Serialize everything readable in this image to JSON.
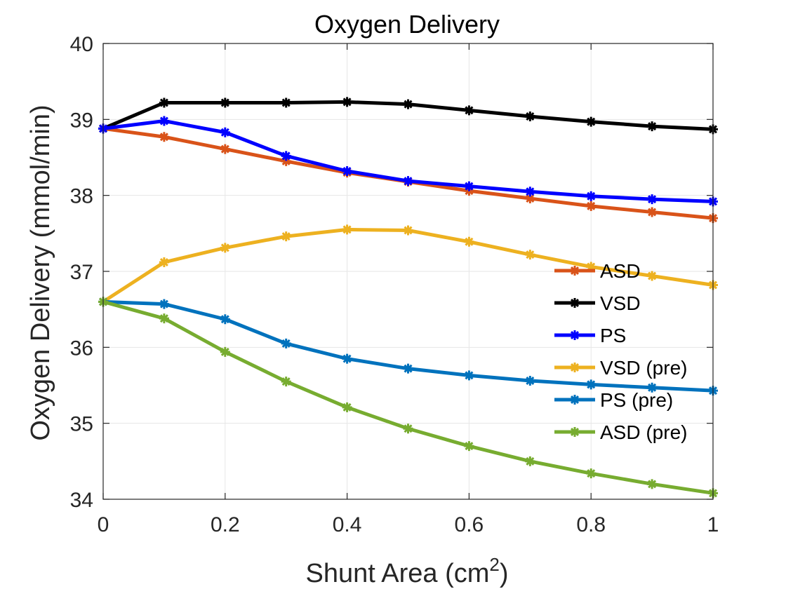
{
  "chart_data": {
    "type": "line",
    "title": "Oxygen Delivery",
    "xlabel": "Shunt Area (cm",
    "xlabel_sup": "2",
    "xlabel_close": ")",
    "ylabel": "Oxygen Delivery (mmol/min)",
    "xlim": [
      0,
      1
    ],
    "ylim": [
      34,
      40
    ],
    "xticks": [
      "0",
      "0.2",
      "0.4",
      "0.6",
      "0.8",
      "1"
    ],
    "yticks": [
      "34",
      "35",
      "36",
      "37",
      "38",
      "39",
      "40"
    ],
    "grid": true,
    "legend_position": "right",
    "x": [
      0,
      0.1,
      0.2,
      0.3,
      0.4,
      0.5,
      0.6,
      0.7,
      0.8,
      0.9,
      1.0
    ],
    "series": [
      {
        "name": "ASD",
        "color": "#D95319",
        "values": [
          38.88,
          38.77,
          38.61,
          38.45,
          38.3,
          38.18,
          38.06,
          37.96,
          37.86,
          37.78,
          37.7
        ]
      },
      {
        "name": "VSD",
        "color": "#000000",
        "values": [
          38.88,
          39.22,
          39.22,
          39.22,
          39.23,
          39.2,
          39.12,
          39.04,
          38.97,
          38.91,
          38.87
        ]
      },
      {
        "name": "PS",
        "color": "#0000FF",
        "values": [
          38.88,
          38.98,
          38.83,
          38.52,
          38.32,
          38.19,
          38.12,
          38.05,
          37.99,
          37.95,
          37.92
        ]
      },
      {
        "name": "VSD (pre)",
        "color": "#EDB120",
        "values": [
          36.6,
          37.12,
          37.31,
          37.46,
          37.55,
          37.54,
          37.39,
          37.22,
          37.06,
          36.94,
          36.82
        ]
      },
      {
        "name": "PS (pre)",
        "color": "#0072BD",
        "values": [
          36.6,
          36.57,
          36.37,
          36.05,
          35.85,
          35.72,
          35.63,
          35.56,
          35.51,
          35.47,
          35.43
        ]
      },
      {
        "name": "ASD (pre)",
        "color": "#77AC30",
        "values": [
          36.6,
          36.38,
          35.94,
          35.55,
          35.21,
          34.93,
          34.7,
          34.5,
          34.34,
          34.2,
          34.08
        ]
      }
    ],
    "axis_color": "#262626",
    "grid_color": "#e6e6e6"
  }
}
